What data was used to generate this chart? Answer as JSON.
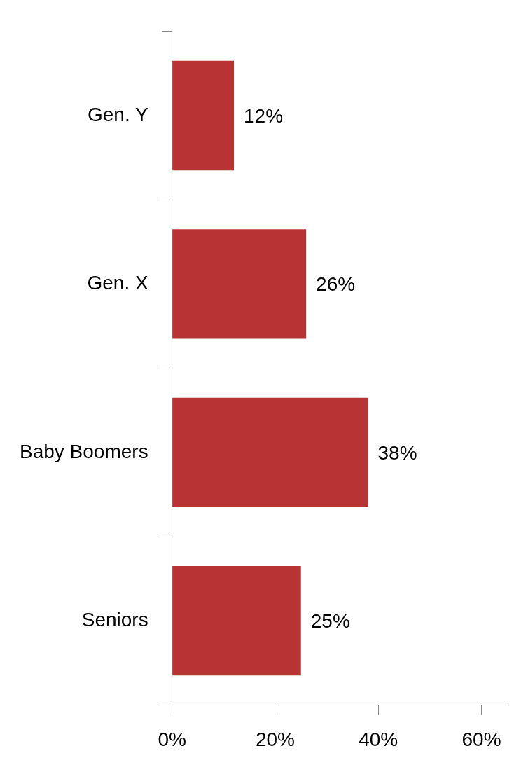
{
  "chart_data": {
    "type": "bar",
    "orientation": "horizontal",
    "categories": [
      "Gen. Y",
      "Gen. X",
      "Baby Boomers",
      "Seniors"
    ],
    "values": [
      12,
      26,
      38,
      25
    ],
    "value_labels": [
      "12%",
      "26%",
      "38%",
      "25%"
    ],
    "color": "#b83434",
    "xlim": [
      0,
      65
    ],
    "xticks": [
      {
        "value": 0,
        "label": "0%"
      },
      {
        "value": 20,
        "label": "20%"
      },
      {
        "value": 40,
        "label": "40%"
      },
      {
        "value": 60,
        "label": "60%"
      }
    ],
    "grid": false,
    "legend": false
  }
}
